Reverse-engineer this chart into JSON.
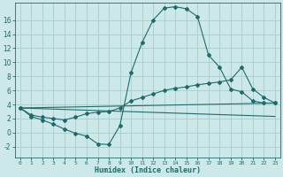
{
  "background_color": "#cce8e8",
  "grid_color": "#aacccc",
  "line_color": "#1f6b6b",
  "xlabel": "Humidex (Indice chaleur)",
  "xlim": [
    -0.5,
    23.5
  ],
  "ylim": [
    -3.5,
    18.5
  ],
  "xticks": [
    0,
    1,
    2,
    3,
    4,
    5,
    6,
    7,
    8,
    9,
    10,
    11,
    12,
    13,
    14,
    15,
    16,
    17,
    18,
    19,
    20,
    21,
    22,
    23
  ],
  "yticks": [
    -2,
    0,
    2,
    4,
    6,
    8,
    10,
    12,
    14,
    16
  ],
  "line1_x": [
    0,
    1,
    2,
    3,
    4,
    5,
    6,
    7,
    8,
    9,
    10,
    11,
    12,
    13,
    14,
    15,
    16,
    17,
    18,
    19,
    20,
    21,
    22,
    23
  ],
  "line1_y": [
    3.5,
    2.3,
    1.8,
    1.2,
    0.5,
    -0.1,
    -0.5,
    -1.6,
    -1.7,
    1.0,
    8.5,
    12.8,
    16.0,
    17.7,
    17.9,
    17.6,
    16.5,
    11.0,
    9.3,
    6.2,
    5.8,
    4.5,
    4.2,
    4.2
  ],
  "line2_x": [
    0,
    1,
    2,
    3,
    4,
    5,
    6,
    7,
    8,
    9,
    10,
    11,
    12,
    13,
    14,
    15,
    16,
    17,
    18,
    19,
    20,
    21,
    22,
    23
  ],
  "line2_y": [
    3.5,
    2.5,
    2.2,
    2.0,
    1.8,
    2.2,
    2.7,
    2.9,
    3.0,
    3.5,
    4.5,
    5.0,
    5.5,
    6.0,
    6.3,
    6.5,
    6.8,
    7.0,
    7.2,
    7.5,
    9.3,
    6.2,
    5.0,
    4.2
  ],
  "line3_x": [
    0,
    23
  ],
  "line3_y": [
    3.5,
    4.2
  ],
  "line4_x": [
    0,
    23
  ],
  "line4_y": [
    3.5,
    2.3
  ]
}
